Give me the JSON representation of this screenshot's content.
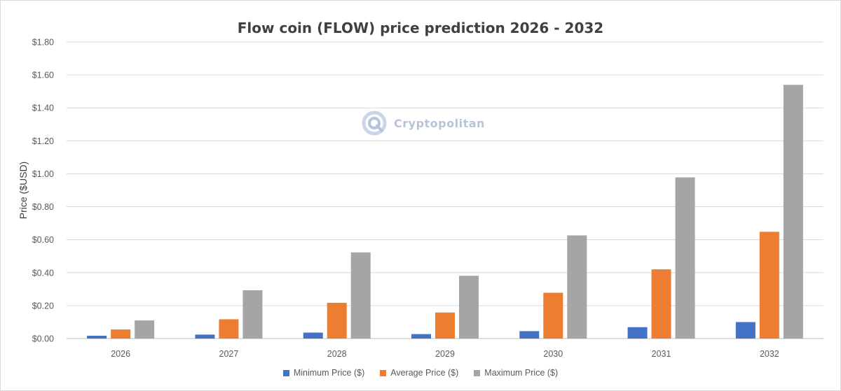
{
  "chart_data": {
    "type": "bar",
    "title": "Flow coin (FLOW) price prediction 2026 - 2032",
    "xlabel": "",
    "ylabel": "Price ($USD)",
    "categories": [
      "2026",
      "2027",
      "2028",
      "2029",
      "2030",
      "2031",
      "2032"
    ],
    "series": [
      {
        "name": "Minimum Price ($)",
        "color": "#4472c4",
        "values": [
          0.017,
          0.024,
          0.036,
          0.027,
          0.045,
          0.069,
          0.1
        ]
      },
      {
        "name": "Average Price ($)",
        "color": "#ed7d31",
        "values": [
          0.055,
          0.117,
          0.217,
          0.158,
          0.278,
          0.42,
          0.648
        ]
      },
      {
        "name": "Maximum Price ($)",
        "color": "#a5a5a5",
        "values": [
          0.11,
          0.293,
          0.523,
          0.381,
          0.626,
          0.978,
          1.54
        ]
      }
    ],
    "ylim": [
      0,
      1.8
    ],
    "yticks": [
      "$0.00",
      "$0.20",
      "$0.40",
      "$0.60",
      "$0.80",
      "$1.00",
      "$1.20",
      "$1.40",
      "$1.60",
      "$1.80"
    ],
    "grid": true,
    "legend_position": "bottom"
  },
  "watermark": {
    "text": "Cryptopolitan",
    "icon": "cryptopolitan-logo-icon",
    "color": "#9fb0d0"
  }
}
